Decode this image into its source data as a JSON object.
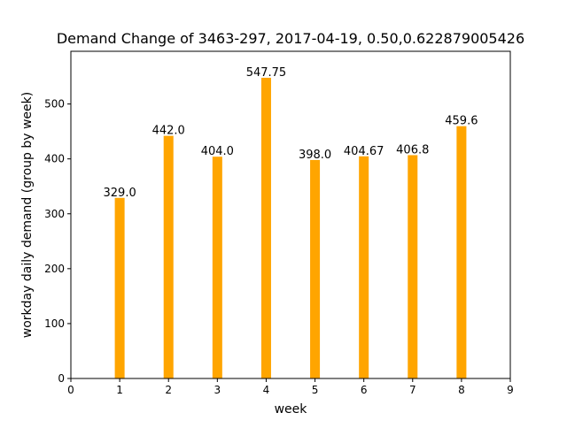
{
  "chart_data": {
    "type": "bar",
    "title": "Demand Change of 3463-297, 2017-04-19, 0.50,0.622879005426",
    "xlabel": "week",
    "ylabel": "workday daily demand (group by week)",
    "x": [
      1,
      2,
      3,
      4,
      5,
      6,
      7,
      8
    ],
    "values": [
      329.0,
      442.0,
      404.0,
      547.75,
      398.0,
      404.67,
      406.8,
      459.6
    ],
    "data_labels": [
      "329.0",
      "442.0",
      "404.0",
      "547.75",
      "398.0",
      "404.67",
      "406.8",
      "459.6"
    ],
    "xlim": [
      0,
      9
    ],
    "ylim": [
      0,
      596
    ],
    "xticks": [
      0,
      1,
      2,
      3,
      4,
      5,
      6,
      7,
      8,
      9
    ],
    "yticks": [
      0,
      100,
      200,
      300,
      400,
      500
    ],
    "bar_color": "#ffa500",
    "grid": false,
    "legend": "none"
  }
}
